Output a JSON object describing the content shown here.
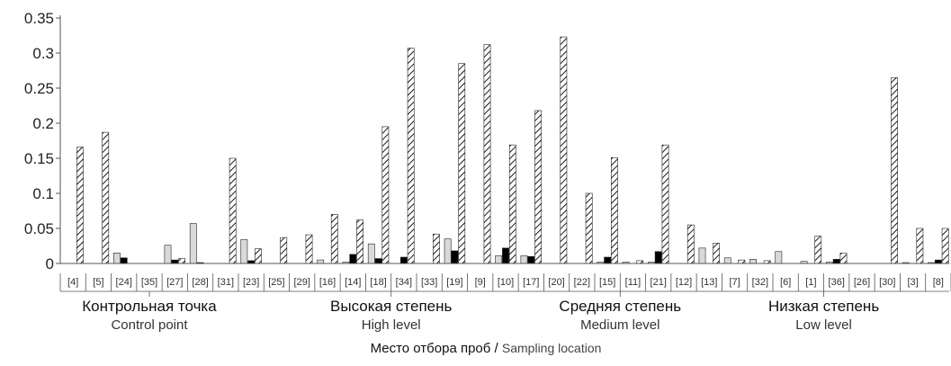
{
  "chart_data": {
    "type": "bar",
    "y_ticks": [
      0,
      0.05,
      0.1,
      0.15,
      0.2,
      0.25,
      0.3,
      0.35
    ],
    "ylim": [
      0,
      0.35
    ],
    "grid": false,
    "colors": {
      "series1": "#d9d9d9",
      "series2": "#000000",
      "series3": "hatched",
      "axis": "#555555"
    },
    "categories": [
      "[4]",
      "[5]",
      "[24]",
      "[35]",
      "[27]",
      "[28]",
      "[31]",
      "[23]",
      "[25]",
      "[29]",
      "[16]",
      "[14]",
      "[18]",
      "[34]",
      "[33]",
      "[19]",
      "[9]",
      "[10]",
      "[17]",
      "[20]",
      "[22]",
      "[15]",
      "[11]",
      "[21]",
      "[12]",
      "[13]",
      "[7]",
      "[32]",
      "[6]",
      "[1]",
      "[36]",
      "[26]",
      "[30]",
      "[3]",
      "[8]"
    ],
    "series": [
      {
        "values": [
          0,
          0,
          0.015,
          0,
          0.026,
          0.057,
          0,
          0.034,
          0,
          0,
          0.005,
          0.002,
          0.028,
          0,
          0,
          0.035,
          0,
          0.011,
          0.011,
          0,
          0,
          0.002,
          0.002,
          0.002,
          0,
          0.022,
          0.008,
          0.006,
          0.017,
          0.003,
          0.002,
          0,
          0,
          0.001,
          0.001
        ]
      },
      {
        "values": [
          0,
          0,
          0.008,
          0,
          0.005,
          0.001,
          0,
          0.004,
          0,
          0,
          0,
          0.013,
          0.007,
          0.009,
          0,
          0.018,
          0,
          0.022,
          0.01,
          0,
          0,
          0.009,
          0,
          0.017,
          0,
          0,
          0,
          0,
          0,
          0,
          0.006,
          0,
          0,
          0,
          0.005
        ]
      },
      {
        "values": [
          0.166,
          0.187,
          0,
          0,
          0.007,
          0,
          0.15,
          0.021,
          0.037,
          0.041,
          0.07,
          0.062,
          0.195,
          0.307,
          0.042,
          0.285,
          0.312,
          0.169,
          0.218,
          0.323,
          0.1,
          0.151,
          0.004,
          0.169,
          0.055,
          0.029,
          0.005,
          0.004,
          0,
          0.039,
          0.015,
          0,
          0.265,
          0.05,
          0.05
        ]
      }
    ],
    "groups": [
      {
        "label_ru": "Контрольная точка",
        "label_en": "Control point",
        "start": 0,
        "end": 6
      },
      {
        "label_ru": "Высокая степень",
        "label_en": "High level",
        "start": 7,
        "end": 18
      },
      {
        "label_ru": "Средняя степень",
        "label_en": "Medium level",
        "start": 19,
        "end": 24
      },
      {
        "label_ru": "Низкая степень",
        "label_en": "Low level",
        "start": 25,
        "end": 34
      }
    ],
    "xlabel_ru": "Место отбора проб",
    "xlabel_sep": " / ",
    "xlabel_en": "Sampling location"
  }
}
